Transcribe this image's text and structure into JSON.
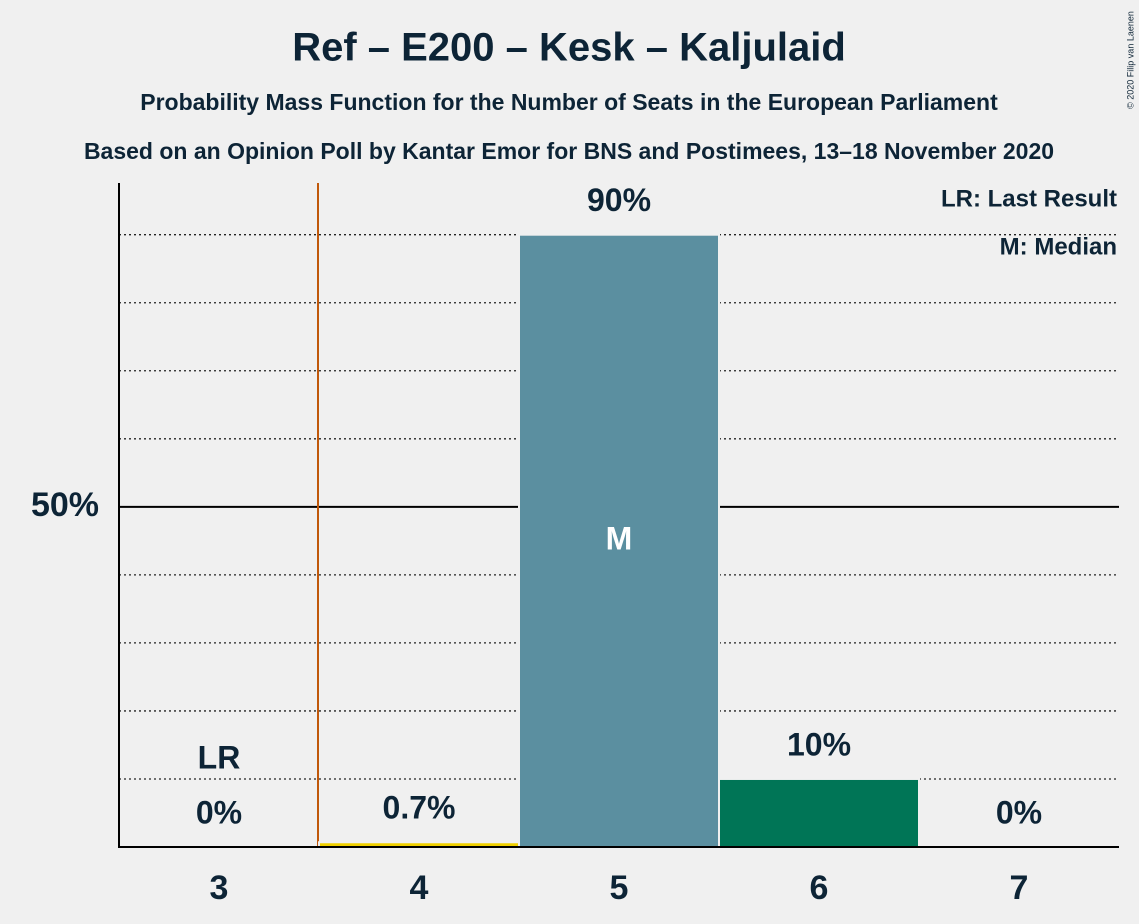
{
  "chart_data": {
    "type": "bar",
    "title": "Ref – E200 – Kesk – Kaljulaid",
    "subtitle": "Probability Mass Function for the Number of Seats in the European Parliament",
    "subtitle2": "Based on an Opinion Poll by Kantar Emor for BNS and Postimees, 13–18 November 2020",
    "copyright": "© 2020 Filip van Laenen",
    "categories": [
      "3",
      "4",
      "5",
      "6",
      "7"
    ],
    "values": [
      0,
      0.7,
      90,
      10,
      0
    ],
    "value_labels": [
      "0%",
      "0.7%",
      "90%",
      "10%",
      "0%"
    ],
    "colors": [
      "#5b8fa0",
      "#f0d000",
      "#5b8fa0",
      "#007556",
      "#007556"
    ],
    "ylim": [
      0,
      97.6
    ],
    "yticks": [
      {
        "value": 50,
        "label": "50%"
      }
    ],
    "minor_gridlines": [
      10,
      20,
      30,
      40,
      60,
      70,
      80,
      90
    ],
    "last_result": "3",
    "last_result_label": "LR",
    "last_result_color": "#c0580a",
    "median": "5",
    "median_label": "M",
    "legend": [
      "LR: Last Result",
      "M: Median"
    ]
  }
}
